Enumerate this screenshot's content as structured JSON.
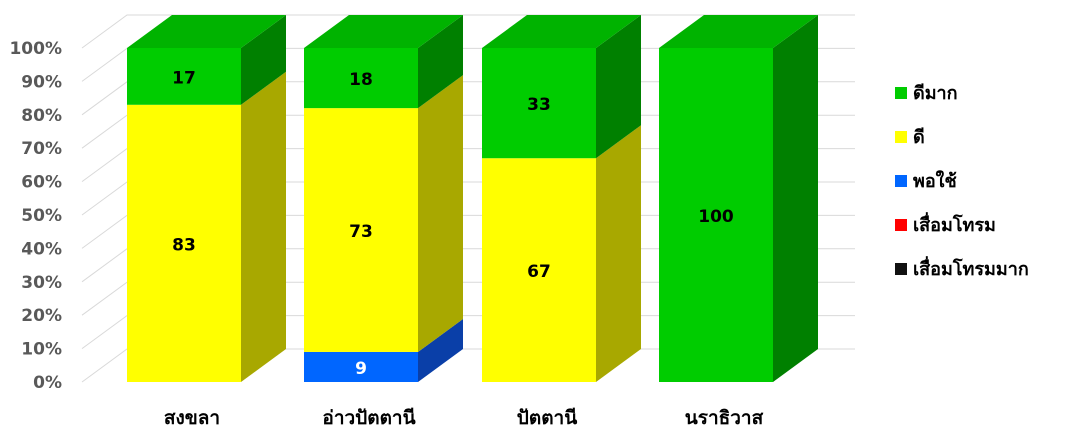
{
  "chart_data": {
    "type": "bar",
    "stacked": true,
    "percent": true,
    "three_d": true,
    "categories": [
      "สงขลา",
      "อ่าวปัตตานี",
      "ปัตตานี",
      "นราธิวาส"
    ],
    "series": [
      {
        "name": "เสื่อมโทรมมาก",
        "color": "#111111",
        "side_color": "#000000",
        "top_color": "#333333",
        "values": [
          0,
          0,
          0,
          0
        ]
      },
      {
        "name": "เสื่อมโทรม",
        "color": "#ff0000",
        "side_color": "#b30000",
        "top_color": "#ff5555",
        "values": [
          0,
          0,
          0,
          0
        ]
      },
      {
        "name": "พอใช้",
        "color": "#0066ff",
        "side_color": "#0a3fa8",
        "top_color": "#3d86ff",
        "values": [
          0,
          9,
          0,
          0
        ]
      },
      {
        "name": "ดี",
        "color": "#ffff00",
        "side_color": "#a8a800",
        "top_color": "#ffff66",
        "values": [
          83,
          73,
          67,
          0
        ]
      },
      {
        "name": "ดีมาก",
        "color": "#00cc00",
        "side_color": "#008000",
        "top_color": "#00b300",
        "values": [
          17,
          18,
          33,
          100
        ]
      }
    ],
    "legend_order": [
      "ดีมาก",
      "ดี",
      "พอใช้",
      "เสื่อมโทรม",
      "เสื่อมโทรมมาก"
    ],
    "data_labels": [
      {
        "category": "สงขลา",
        "series": "ดีมาก",
        "text": "17"
      },
      {
        "category": "สงขลา",
        "series": "ดี",
        "text": "83"
      },
      {
        "category": "อ่าวปัตตานี",
        "series": "ดีมาก",
        "text": "18"
      },
      {
        "category": "อ่าวปัตตานี",
        "series": "ดี",
        "text": "73"
      },
      {
        "category": "อ่าวปัตตานี",
        "series": "พอใช้",
        "text": "9"
      },
      {
        "category": "ปัตตานี",
        "series": "ดีมาก",
        "text": "33"
      },
      {
        "category": "ปัตตานี",
        "series": "ดี",
        "text": "67"
      },
      {
        "category": "นราธิวาส",
        "series": "ดีมาก",
        "text": "100"
      }
    ],
    "y_ticks": [
      "0%",
      "10%",
      "20%",
      "30%",
      "40%",
      "50%",
      "60%",
      "70%",
      "80%",
      "90%",
      "100%"
    ],
    "ylim": [
      0,
      100
    ],
    "grid": true,
    "legend_position": "right",
    "title": "",
    "xlabel": "",
    "ylabel": ""
  }
}
